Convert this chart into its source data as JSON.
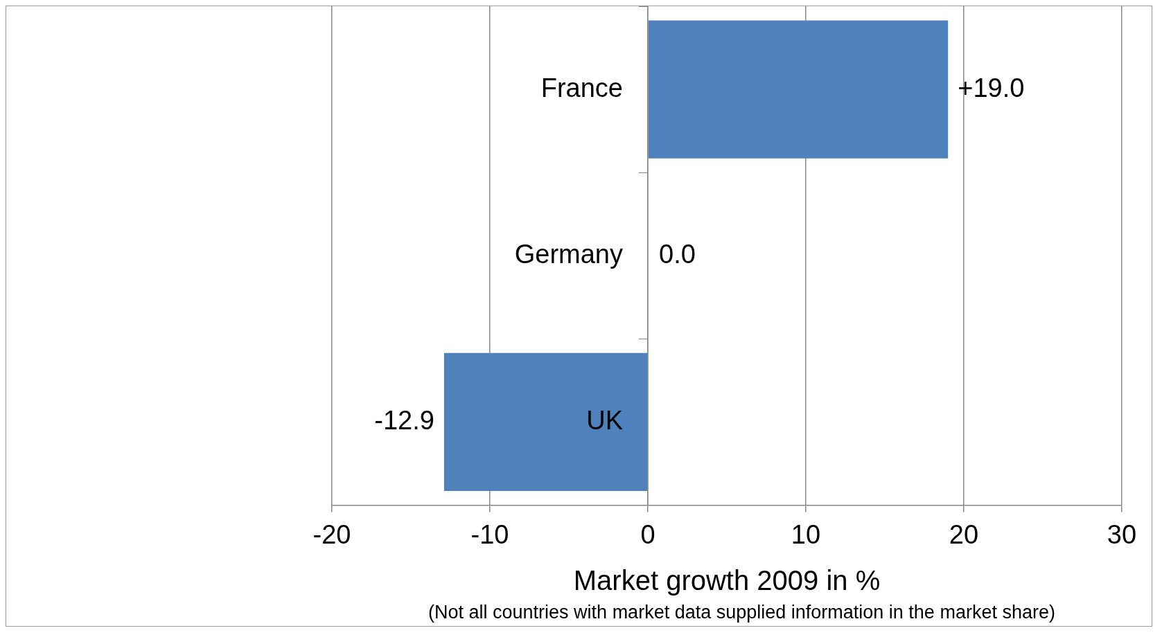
{
  "chart_data": {
    "type": "bar",
    "orientation": "horizontal",
    "categories": [
      "France",
      "Germany",
      "UK"
    ],
    "values": [
      19.0,
      0.0,
      -12.9
    ],
    "value_labels": [
      "+19.0",
      "0.0",
      "-12.9"
    ],
    "color": "#4f81bd",
    "xlim": [
      -20,
      30
    ],
    "xticks": [
      -20,
      -10,
      0,
      10,
      20,
      30
    ],
    "grid": "x",
    "legend": false,
    "xlabel": "Market growth 2009 in %",
    "annotations": [
      "(Not all countries with market data supplied information in the market share)"
    ]
  }
}
